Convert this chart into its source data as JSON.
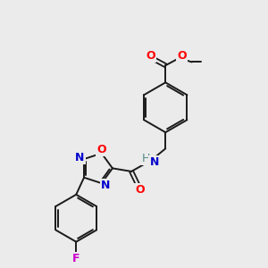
{
  "bg_color": "#ebebeb",
  "bond_color": "#1a1a1a",
  "atom_colors": {
    "O": "#ff0000",
    "N": "#0000cc",
    "F": "#cc00cc",
    "H": "#558888",
    "C": "#1a1a1a"
  }
}
